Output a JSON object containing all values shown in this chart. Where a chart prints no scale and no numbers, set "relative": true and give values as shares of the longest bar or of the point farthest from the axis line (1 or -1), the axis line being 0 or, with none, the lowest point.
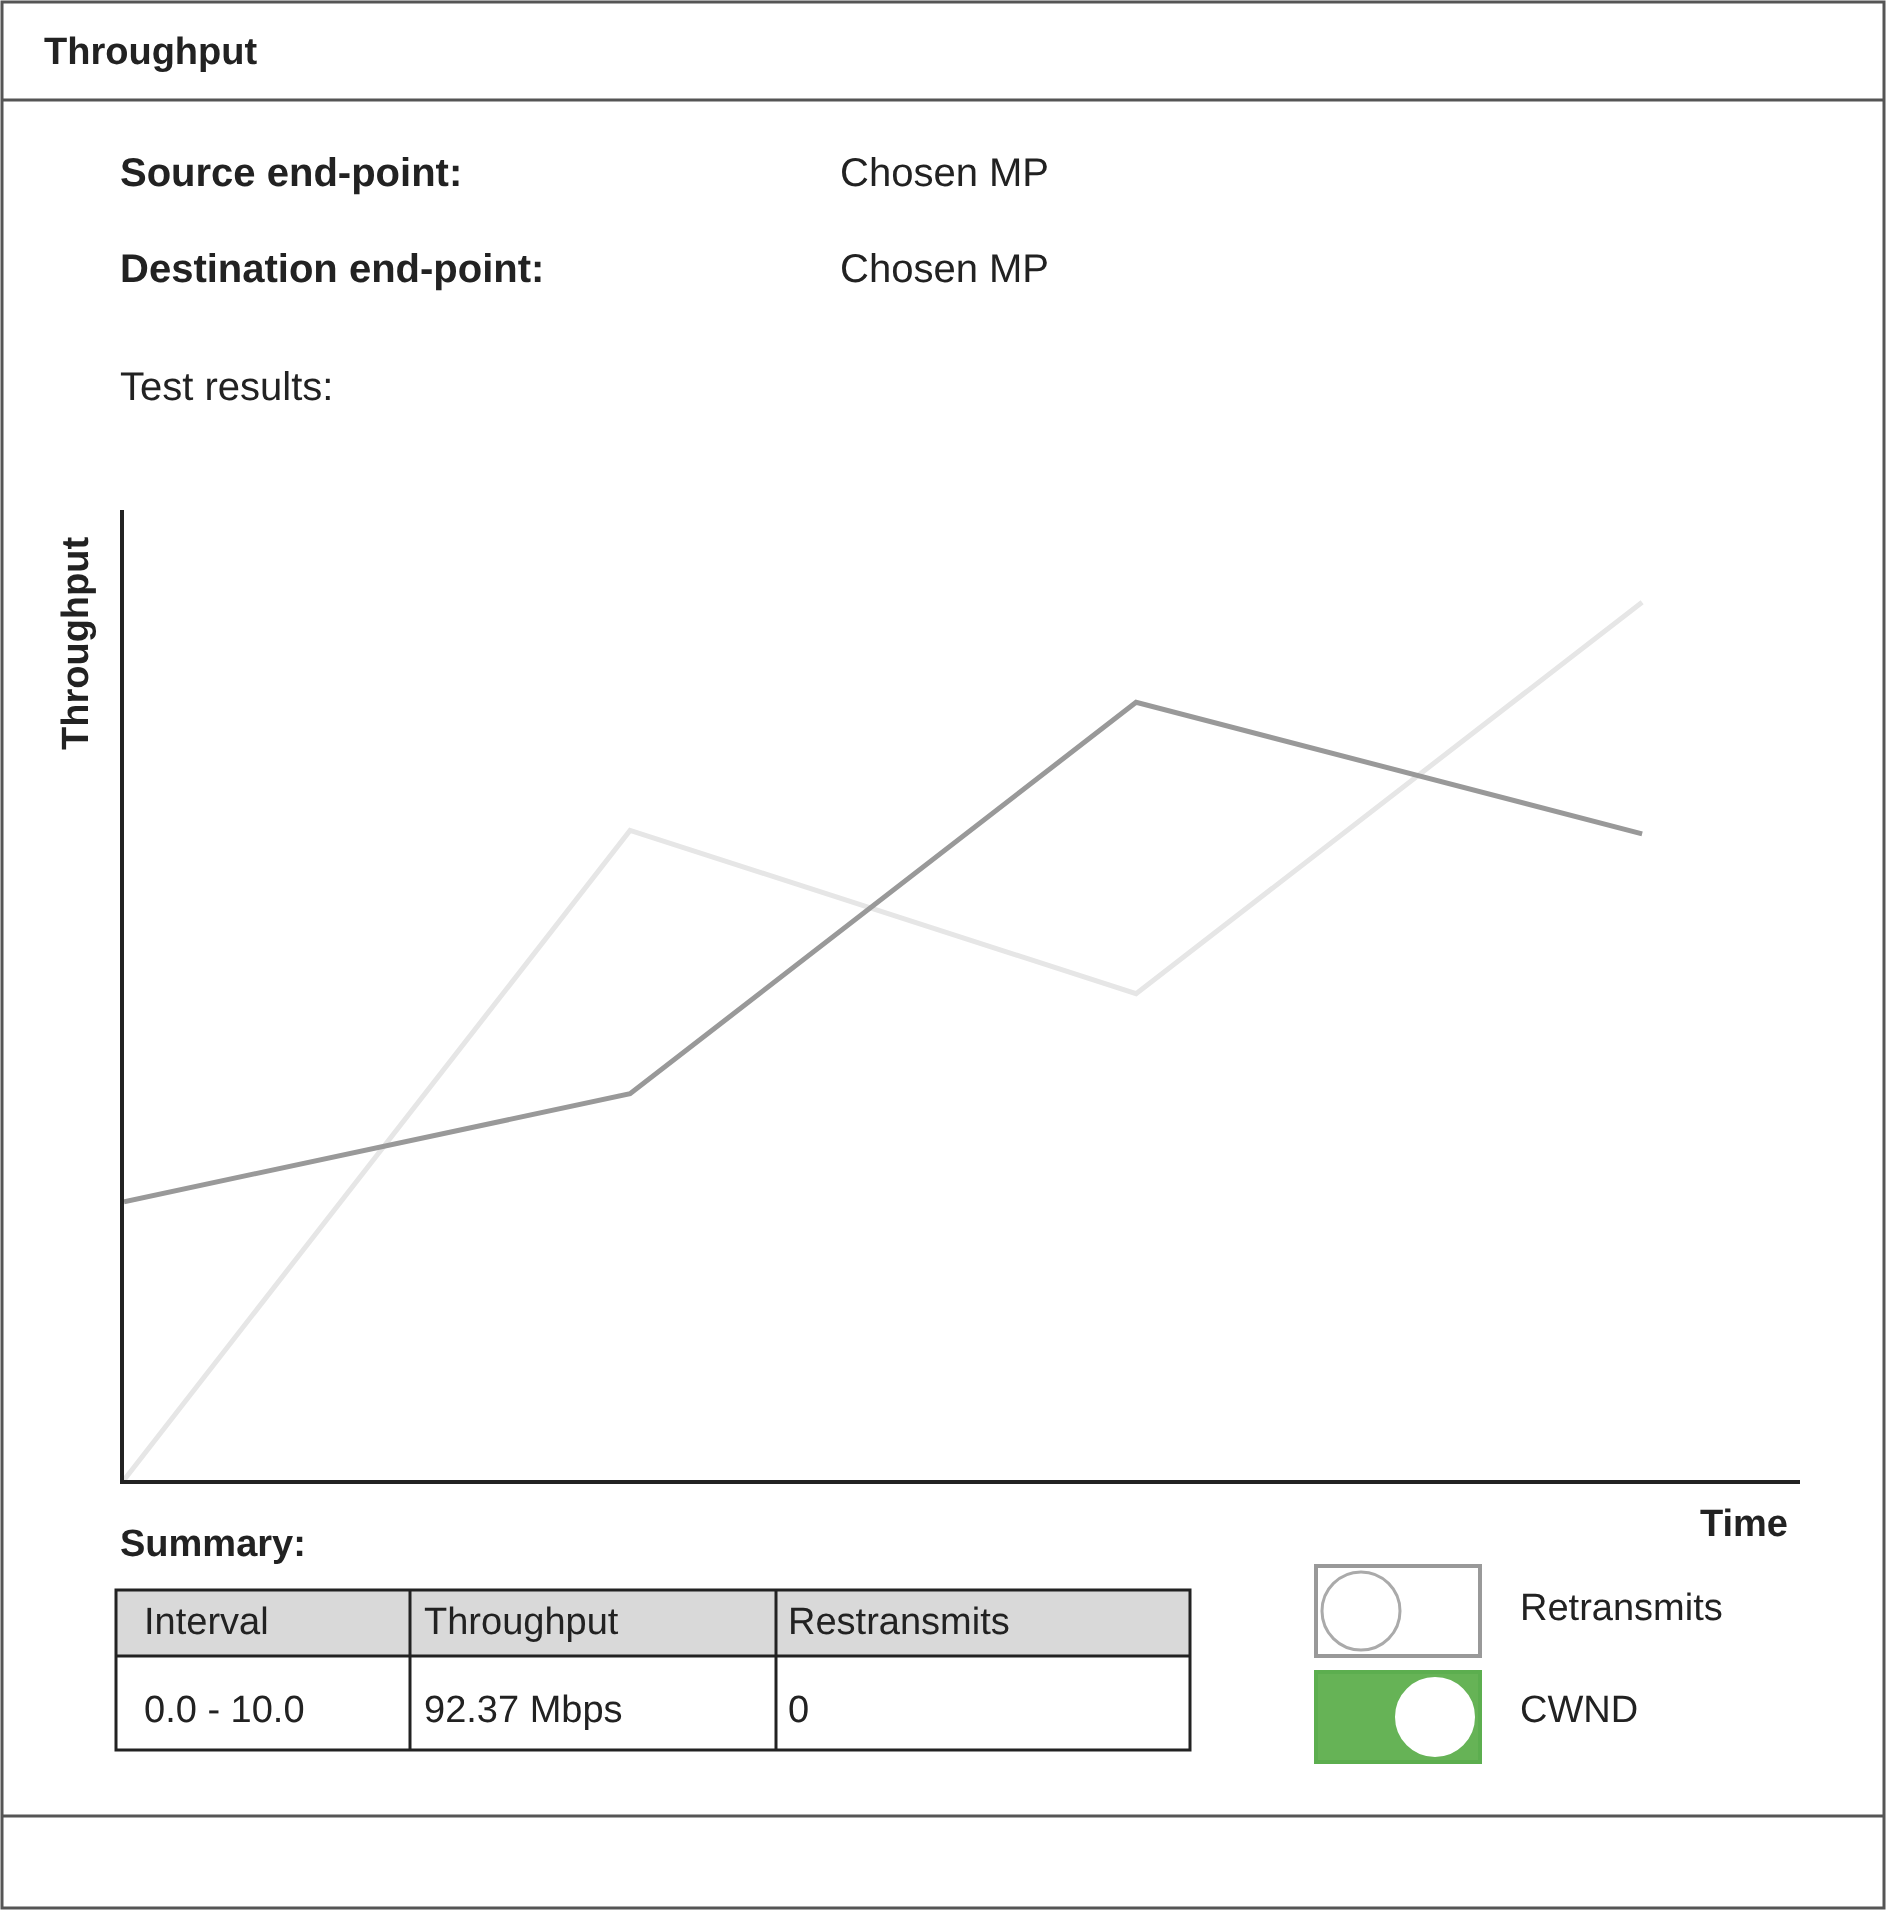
{
  "chart_data": {
    "type": "line",
    "title": "Throughput",
    "xlabel": "Time",
    "ylabel": "Throughput",
    "relative": true,
    "categories": [
      null,
      null,
      null,
      null
    ],
    "marker": "none",
    "line_style": "solid",
    "series": [
      {
        "color": "#e6e6e6",
        "values": [
          0,
          0.74,
          0.554,
          1
        ]
      },
      {
        "color": "#999999",
        "values": [
          0.317,
          0.44,
          0.886,
          0.736
        ]
      }
    ],
    "annotations": [
      "Source end-point:",
      "Chosen MP",
      "Destination end-point:",
      "Chosen MP",
      "Test results:",
      "Summary:",
      "Interval",
      "Throughput",
      "Restransmits",
      "0.0 - 10.0",
      "92.37 Mbps",
      "0",
      "Retransmits",
      "CWND"
    ]
  }
}
